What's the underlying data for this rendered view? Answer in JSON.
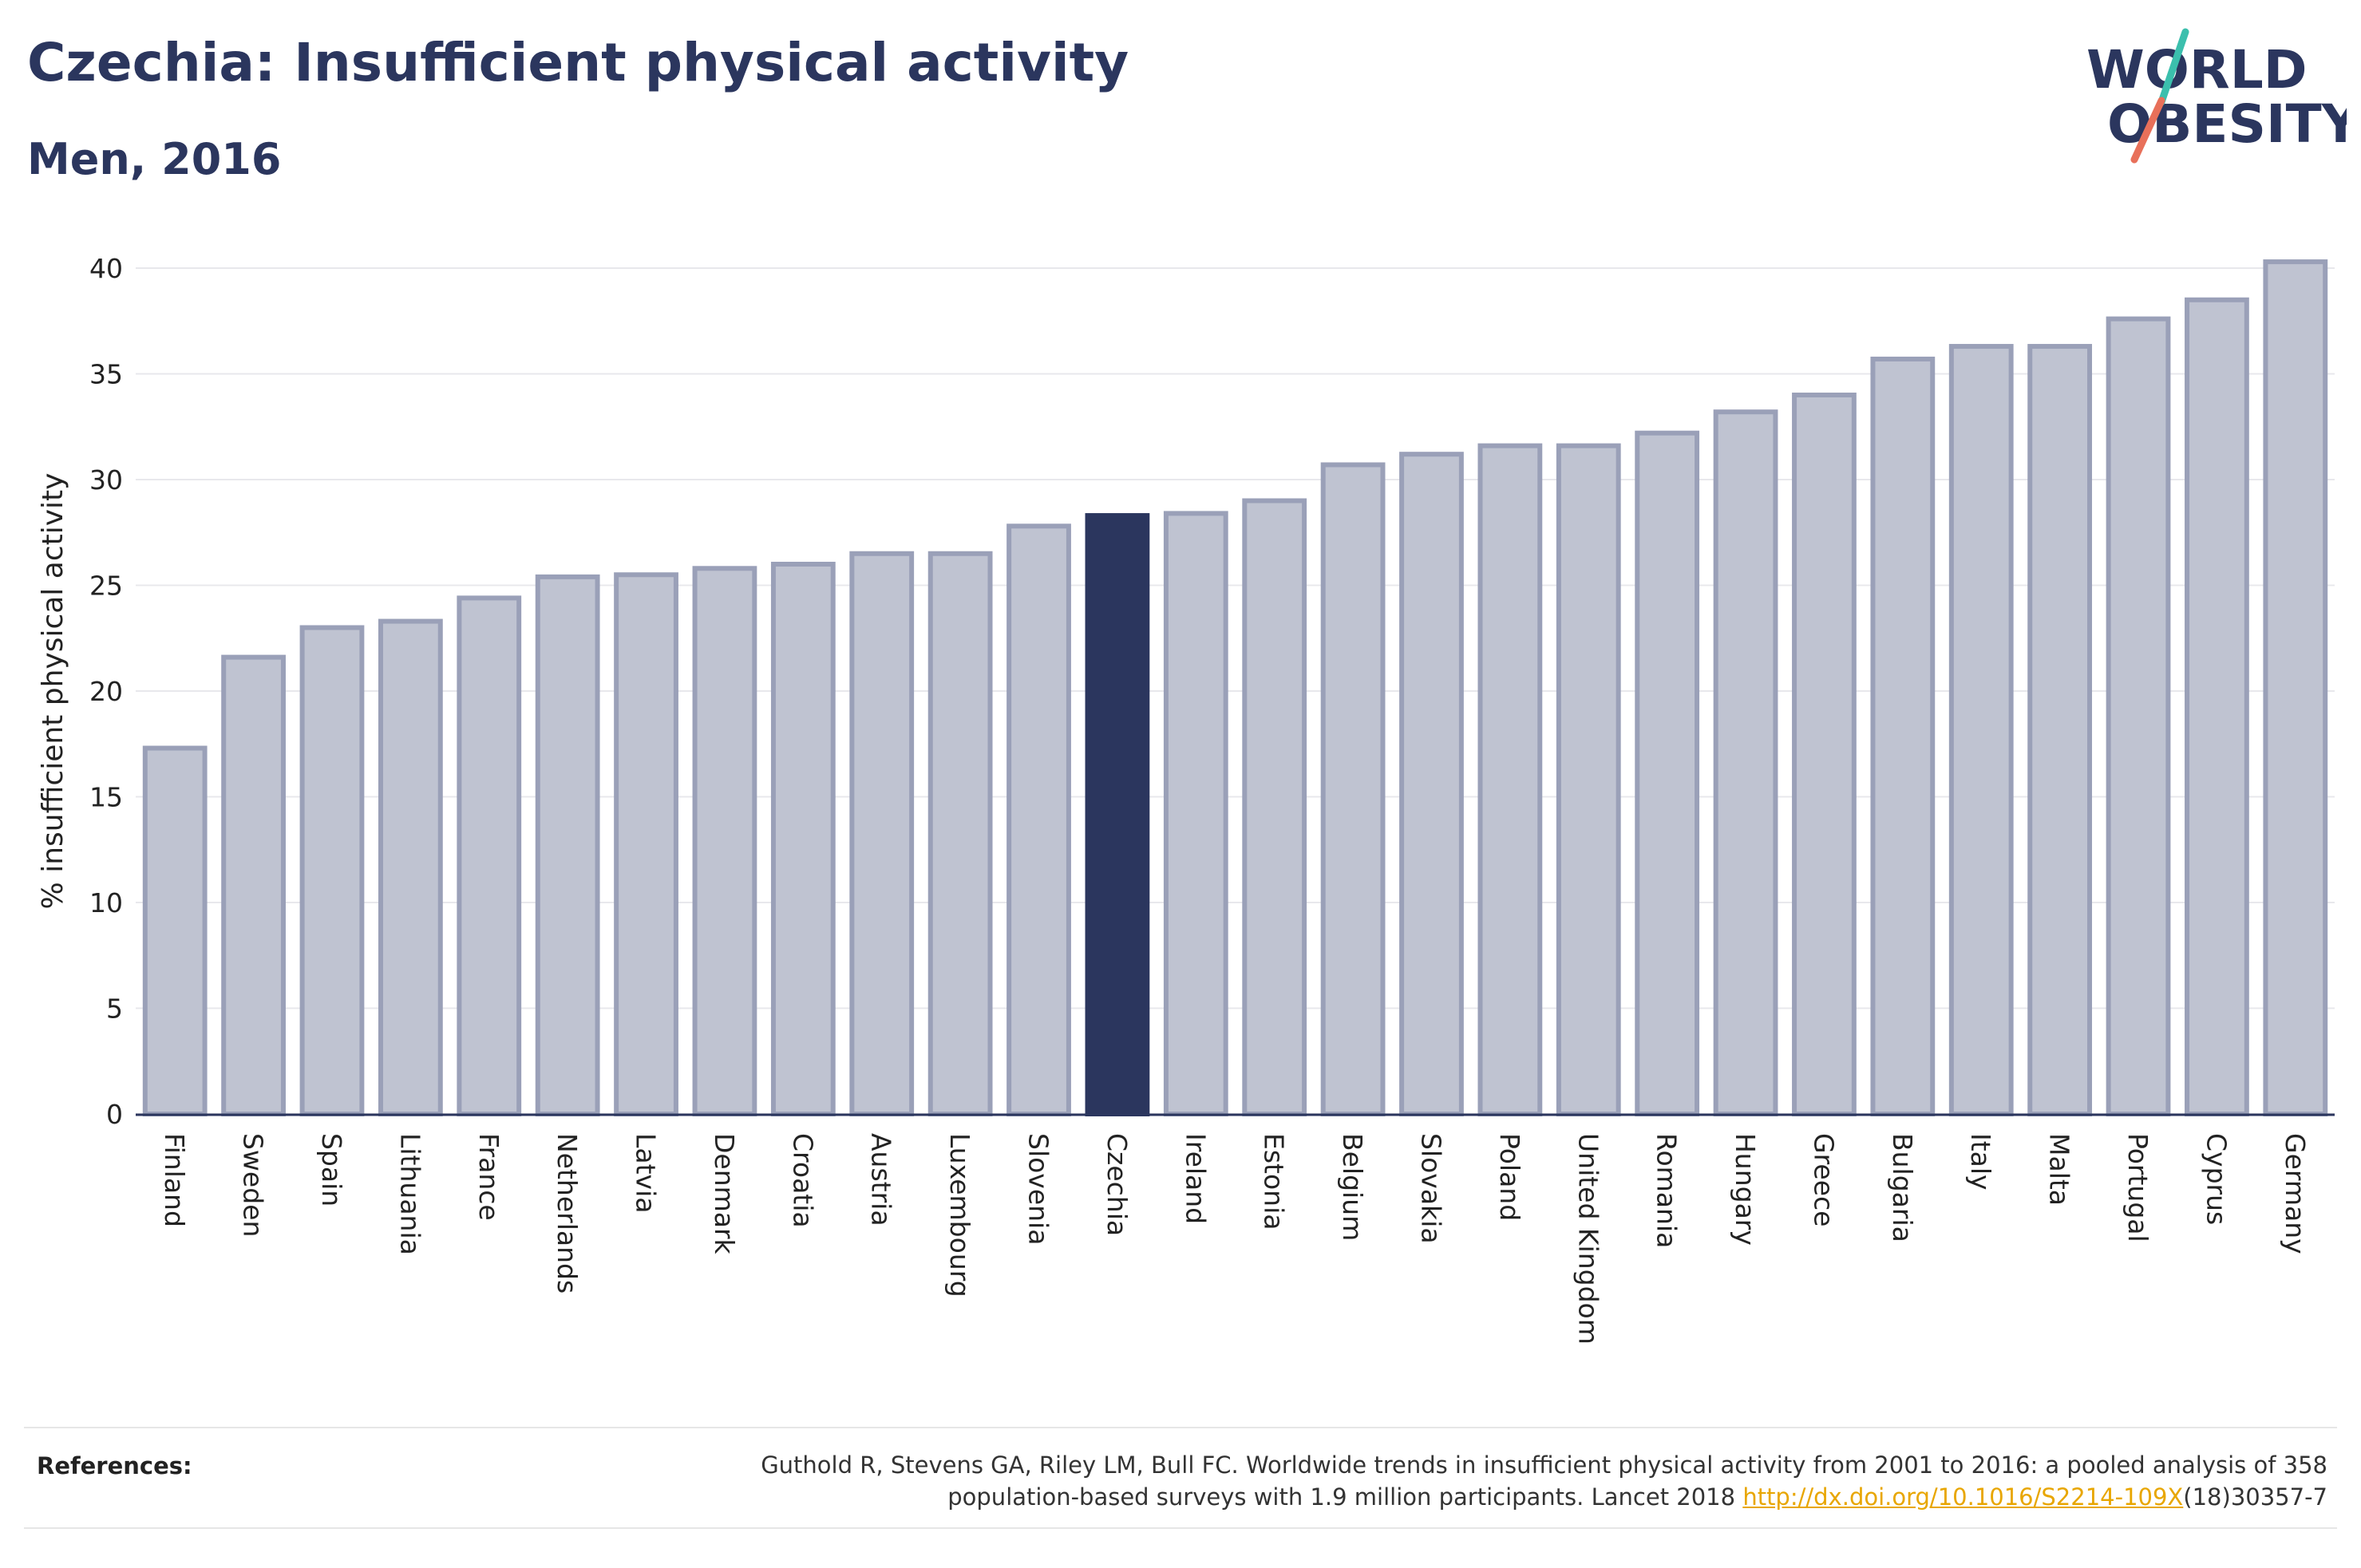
{
  "title": "Czechia: Insufficient physical activity",
  "subtitle": "Men, 2016",
  "logo": {
    "line1": "WORLD",
    "line2": "OBESITY"
  },
  "colors": {
    "bar_fill": "#bfc3d1",
    "bar_stroke": "#9aa0b8",
    "highlight": "#2b365e",
    "grid": "#e8e8ec",
    "logo_teal": "#3bbfad",
    "logo_coral": "#e8705a",
    "link": "#e8a600"
  },
  "chart_data": {
    "type": "bar",
    "ylabel": "% insufficient physical activity",
    "ylim": [
      0,
      40
    ],
    "yticks": [
      0,
      5,
      10,
      15,
      20,
      25,
      30,
      35,
      40
    ],
    "highlight": "Czechia",
    "categories": [
      "Finland",
      "Sweden",
      "Spain",
      "Lithuania",
      "France",
      "Netherlands",
      "Latvia",
      "Denmark",
      "Croatia",
      "Austria",
      "Luxembourg",
      "Slovenia",
      "Czechia",
      "Ireland",
      "Estonia",
      "Belgium",
      "Slovakia",
      "Poland",
      "United Kingdom",
      "Romania",
      "Hungary",
      "Greece",
      "Bulgaria",
      "Italy",
      "Malta",
      "Portugal",
      "Cyprus",
      "Germany"
    ],
    "values": [
      17.3,
      21.6,
      23.0,
      23.3,
      24.4,
      25.4,
      25.5,
      25.8,
      26.0,
      26.5,
      26.5,
      27.8,
      28.3,
      28.4,
      29.0,
      30.7,
      31.2,
      31.6,
      31.6,
      32.2,
      33.2,
      34.0,
      35.7,
      36.3,
      36.3,
      37.6,
      38.5,
      40.3
    ]
  },
  "references": {
    "label": "References:",
    "text_line1": "Guthold R, Stevens GA, Riley LM, Bull FC. Worldwide trends in insufficient physical activity from 2001 to 2016: a pooled analysis of 358",
    "text_line2_before": "population-based surveys with 1.9 million participants. Lancet 2018 ",
    "link_text": "http://dx.doi.org/10.1016/S2214-109X",
    "text_line2_after": "(18)30357-7"
  }
}
